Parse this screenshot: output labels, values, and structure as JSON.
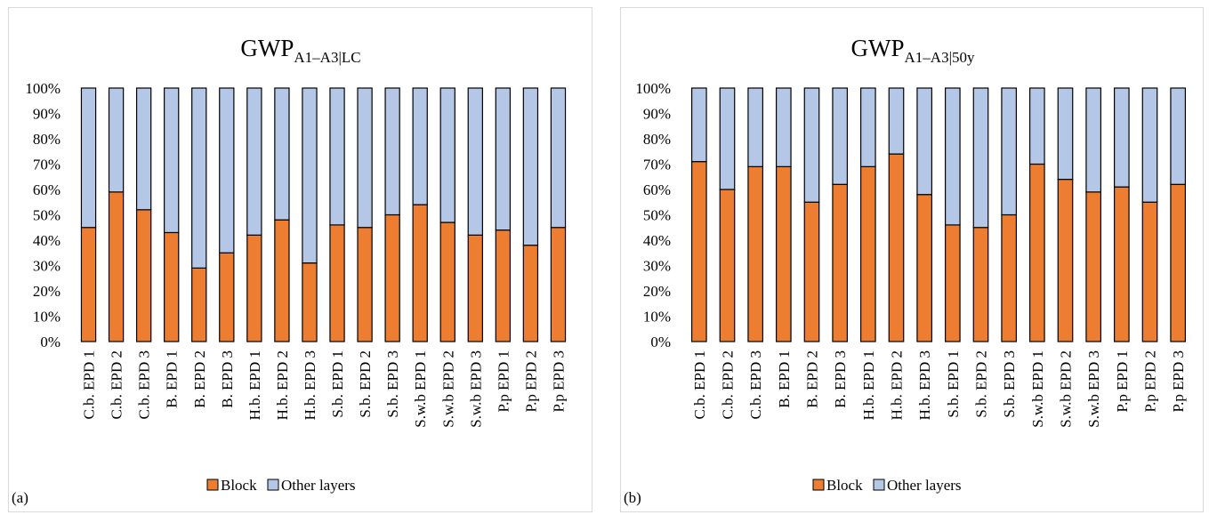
{
  "chart_data": [
    {
      "type": "bar",
      "stacked": true,
      "percent": true,
      "panel_label": "(a)",
      "title": "GWP",
      "title_subscript": "A1–A3|LC",
      "ylim": [
        0,
        100
      ],
      "yticks": [
        "0%",
        "10%",
        "20%",
        "30%",
        "40%",
        "50%",
        "60%",
        "70%",
        "80%",
        "90%",
        "100%"
      ],
      "grid": false,
      "legend_position": "bottom",
      "categories": [
        "C.b. EPD 1",
        "C.b. EPD 2",
        "C.b. EPD 3",
        "B. EPD 1",
        "B. EPD 2",
        "B. EPD 3",
        "H.b. EPD 1",
        "H.b. EPD 2",
        "H.b. EPD 3",
        "S.b. EPD 1",
        "S.b. EPD 2",
        "S.b. EPD 3",
        "S.w.b EPD 1",
        "S.w.b EPD 2",
        "S.w.b EPD 3",
        "P.p EPD 1",
        "P.p EPD 2",
        "P.p EPD 3"
      ],
      "series": [
        {
          "name": "Block",
          "color": "#ed7d31",
          "values": [
            45,
            59,
            52,
            43,
            29,
            35,
            42,
            48,
            31,
            46,
            45,
            50,
            54,
            47,
            42,
            44,
            38,
            45
          ]
        },
        {
          "name": "Other layers",
          "color": "#b4c7e7",
          "values": [
            55,
            41,
            48,
            57,
            71,
            65,
            58,
            52,
            69,
            54,
            55,
            50,
            46,
            53,
            58,
            56,
            62,
            55
          ]
        }
      ]
    },
    {
      "type": "bar",
      "stacked": true,
      "percent": true,
      "panel_label": "(b)",
      "title": "GWP",
      "title_subscript": "A1–A3|50y",
      "ylim": [
        0,
        100
      ],
      "yticks": [
        "0%",
        "10%",
        "20%",
        "30%",
        "40%",
        "50%",
        "60%",
        "70%",
        "80%",
        "90%",
        "100%"
      ],
      "grid": false,
      "legend_position": "bottom",
      "categories": [
        "C.b. EPD 1",
        "C.b. EPD 2",
        "C.b. EPD 3",
        "B. EPD 1",
        "B. EPD 2",
        "B. EPD 3",
        "H.b. EPD 1",
        "H.b. EPD 2",
        "H.b. EPD 3",
        "S.b. EPD 1",
        "S.b. EPD 2",
        "S.b. EPD 3",
        "S.w.b EPD 1",
        "S.w.b EPD 2",
        "S.w.b EPD 3",
        "P.p EPD 1",
        "P.p EPD 2",
        "P.p EPD 3"
      ],
      "series": [
        {
          "name": "Block",
          "color": "#ed7d31",
          "values": [
            71,
            60,
            69,
            69,
            55,
            62,
            69,
            74,
            58,
            46,
            45,
            50,
            70,
            64,
            59,
            61,
            55,
            62
          ]
        },
        {
          "name": "Other layers",
          "color": "#b4c7e7",
          "values": [
            29,
            40,
            31,
            31,
            45,
            38,
            31,
            26,
            42,
            54,
            55,
            50,
            30,
            36,
            41,
            39,
            45,
            38
          ]
        }
      ]
    }
  ]
}
